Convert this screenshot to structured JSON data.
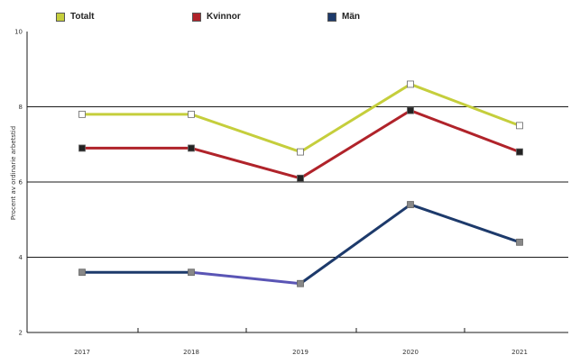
{
  "chart_data": {
    "type": "line",
    "xlabel": "",
    "ylabel": "Procent av ordinarie arbetstid",
    "categories": [
      "2017",
      "2018",
      "2019",
      "2020",
      "2021"
    ],
    "ylim": [
      2,
      10
    ],
    "yticks": [
      2,
      4,
      6,
      8,
      10
    ],
    "grid": "horizontal",
    "legend_position": "top",
    "series": [
      {
        "name": "Totalt",
        "color": "#c5ce3c",
        "marker_fill": "#ffffff",
        "values": [
          7.8,
          7.8,
          6.8,
          8.6,
          7.5
        ]
      },
      {
        "name": "Kvinnor",
        "color": "#b0232a",
        "marker_fill": "#222222",
        "values": [
          6.9,
          6.9,
          6.1,
          7.9,
          6.8
        ]
      },
      {
        "name": "Män",
        "color": "#1d3a6b",
        "marker_fill": "#888888",
        "values": [
          3.6,
          3.6,
          3.3,
          5.4,
          4.4
        ],
        "segment_colors": [
          "#1d3a6b",
          "#5a55b5",
          "#1d3a6b",
          "#1d3a6b"
        ]
      }
    ]
  }
}
